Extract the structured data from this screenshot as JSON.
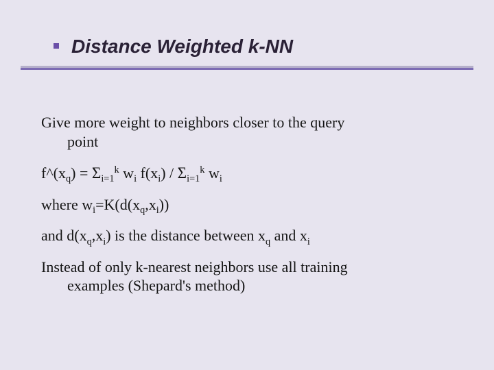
{
  "colors": {
    "bg": "#e7e4ef",
    "bullet": "#6b4fa8",
    "title_text": "#2a2136",
    "hr_light": "#b5afca",
    "hr_dark": "#7c6bb3",
    "body_text": "#151515"
  },
  "title": "Distance Weighted k-NN",
  "body": {
    "p1_a": "Give more weight to neighbors closer to the query",
    "p1_b": "point",
    "formula": {
      "lhs": "f^(x",
      "q1": "q",
      "mid1": ") = ",
      "sigma": "Σ",
      "lo1": "i=1",
      "hi1": "k",
      "mid2": " w",
      "i1": "i",
      "mid3": " f(x",
      "i2": "i",
      "mid4": ") / ",
      "lo2": "i=1",
      "hi2": "k",
      "mid5": " w",
      "i3": "i"
    },
    "where": {
      "a": "where w",
      "i": "i",
      "b": "=K(d(x",
      "q": "q",
      "c": ",x",
      "i2": "i",
      "d": "))"
    },
    "and": {
      "a": "and d(x",
      "q": "q",
      "b": ",x",
      "i": "i",
      "c": ") is the distance between x",
      "q2": "q",
      "d": " and x",
      "i2": "i"
    },
    "p5_a": "Instead of only k-nearest neighbors use all training",
    "p5_b": "examples (Shepard's method)"
  }
}
